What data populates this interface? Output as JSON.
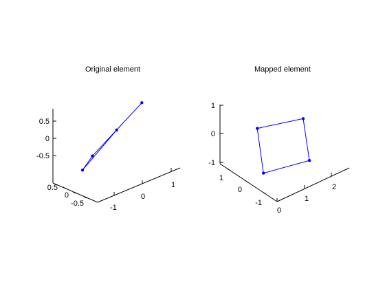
{
  "chart_data": [
    {
      "type": "line",
      "projection": "3d",
      "title": "Original element",
      "xlabel": "",
      "ylabel": "",
      "zlabel": "",
      "series_color": "#0000ff",
      "xlim": [
        -1.2,
        1.2
      ],
      "ylim": [
        -0.8,
        0.8
      ],
      "zlim": [
        -0.8,
        0.8
      ],
      "x_ticks": [
        "-1",
        "0",
        "1"
      ],
      "y_ticks": [
        "-0.5",
        "0",
        "0.5"
      ],
      "z_ticks": [
        "-0.5",
        "0",
        "0.5"
      ],
      "points": [
        {
          "x": -0.6,
          "y": -0.8,
          "z": 0.78
        },
        {
          "x": 1.15,
          "y": 0.1,
          "z": 0.6
        },
        {
          "x": 0.0,
          "y": 0.8,
          "z": -0.85
        },
        {
          "x": -1.1,
          "y": 0.0,
          "z": -0.55
        }
      ]
    },
    {
      "type": "line",
      "projection": "3d",
      "title": "Mapped element",
      "xlabel": "",
      "ylabel": "",
      "zlabel": "",
      "series_color": "#0000ff",
      "xlim": [
        0,
        3
      ],
      "ylim": [
        -1.5,
        1.5
      ],
      "zlim": [
        -1,
        1
      ],
      "x_ticks": [
        "0",
        "1",
        "2"
      ],
      "y_ticks": [
        "-1",
        "0",
        "1"
      ],
      "z_ticks": [
        "-1",
        "0",
        "1"
      ],
      "points": [
        {
          "x": 0.5,
          "y": 0.2,
          "z": 0.5
        },
        {
          "x": 2.0,
          "y": 0.0,
          "z": 0.3
        },
        {
          "x": 1.8,
          "y": -0.5,
          "z": -0.8
        },
        {
          "x": 0.3,
          "y": -0.3,
          "z": -0.7
        }
      ]
    }
  ]
}
